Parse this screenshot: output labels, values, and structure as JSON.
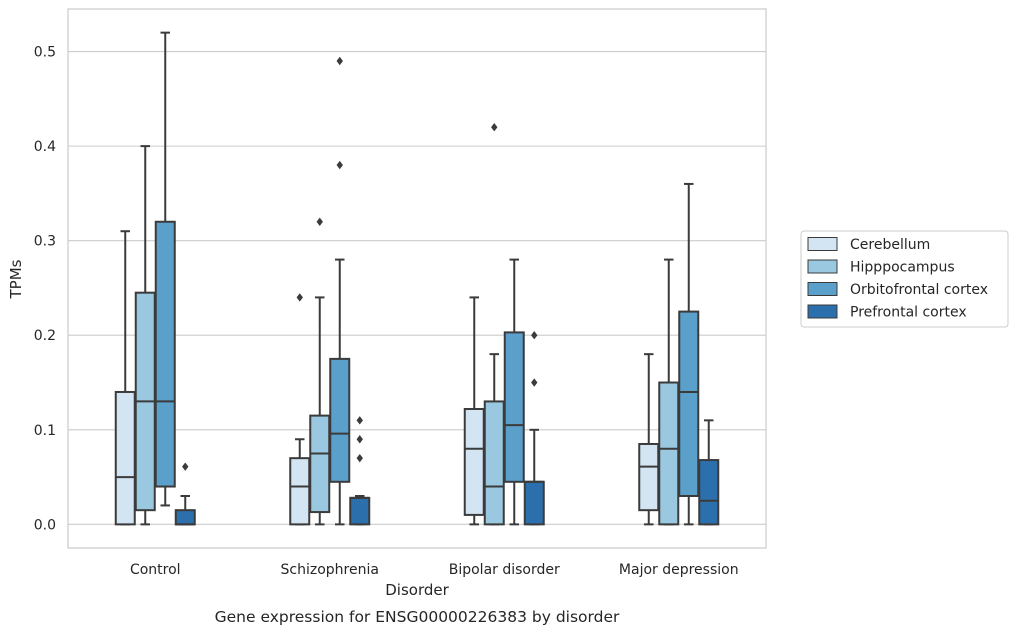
{
  "chart_data": {
    "type": "box",
    "caption": "Gene expression for ENSG00000226383 by disorder",
    "xlabel": "Disorder",
    "ylabel": "TPMs",
    "ylim": [
      -0.025,
      0.545
    ],
    "yticks": [
      "0.0",
      "0.1",
      "0.2",
      "0.3",
      "0.4",
      "0.5"
    ],
    "grid": "horizontal",
    "legend_position": "right",
    "categories": [
      "Control",
      "Schizophrenia",
      "Bipolar disorder",
      "Major depression"
    ],
    "series": [
      {
        "name": "Cerebellum",
        "color": "#d3e4f3",
        "boxes": [
          {
            "whisker_low": 0.0,
            "q1": 0.0,
            "median": 0.05,
            "q3": 0.14,
            "whisker_high": 0.31,
            "outliers": []
          },
          {
            "whisker_low": 0.0,
            "q1": 0.0,
            "median": 0.04,
            "q3": 0.07,
            "whisker_high": 0.09,
            "outliers": [
              0.24
            ]
          },
          {
            "whisker_low": 0.0,
            "q1": 0.01,
            "median": 0.08,
            "q3": 0.122,
            "whisker_high": 0.24,
            "outliers": []
          },
          {
            "whisker_low": 0.0,
            "q1": 0.015,
            "median": 0.061,
            "q3": 0.085,
            "whisker_high": 0.18,
            "outliers": []
          }
        ]
      },
      {
        "name": "Hipppocampus",
        "color": "#9ac8e0",
        "boxes": [
          {
            "whisker_low": 0.0,
            "q1": 0.015,
            "median": 0.13,
            "q3": 0.245,
            "whisker_high": 0.4,
            "outliers": []
          },
          {
            "whisker_low": 0.0,
            "q1": 0.013,
            "median": 0.075,
            "q3": 0.115,
            "whisker_high": 0.24,
            "outliers": [
              0.32
            ]
          },
          {
            "whisker_low": 0.0,
            "q1": 0.0,
            "median": 0.04,
            "q3": 0.13,
            "whisker_high": 0.18,
            "outliers": [
              0.42
            ]
          },
          {
            "whisker_low": 0.0,
            "q1": 0.0,
            "median": 0.08,
            "q3": 0.15,
            "whisker_high": 0.28,
            "outliers": []
          }
        ]
      },
      {
        "name": "Orbitofrontal cortex",
        "color": "#5b9fcb",
        "boxes": [
          {
            "whisker_low": 0.02,
            "q1": 0.04,
            "median": 0.13,
            "q3": 0.32,
            "whisker_high": 0.52,
            "outliers": []
          },
          {
            "whisker_low": 0.0,
            "q1": 0.045,
            "median": 0.096,
            "q3": 0.175,
            "whisker_high": 0.28,
            "outliers": [
              0.38,
              0.49
            ]
          },
          {
            "whisker_low": 0.0,
            "q1": 0.045,
            "median": 0.105,
            "q3": 0.203,
            "whisker_high": 0.28,
            "outliers": []
          },
          {
            "whisker_low": 0.0,
            "q1": 0.03,
            "median": 0.14,
            "q3": 0.225,
            "whisker_high": 0.36,
            "outliers": []
          }
        ]
      },
      {
        "name": "Prefrontal cortex",
        "color": "#2c6fad",
        "boxes": [
          {
            "whisker_low": 0.0,
            "q1": 0.0,
            "median": 0.0,
            "q3": 0.015,
            "whisker_high": 0.03,
            "outliers": [
              0.061
            ]
          },
          {
            "whisker_low": 0.0,
            "q1": 0.0,
            "median": 0.028,
            "q3": 0.028,
            "whisker_high": 0.03,
            "outliers": [
              0.07,
              0.09,
              0.11
            ]
          },
          {
            "whisker_low": 0.0,
            "q1": 0.0,
            "median": 0.045,
            "q3": 0.045,
            "whisker_high": 0.1,
            "outliers": [
              0.15,
              0.2
            ]
          },
          {
            "whisker_low": 0.0,
            "q1": 0.0,
            "median": 0.025,
            "q3": 0.068,
            "whisker_high": 0.11,
            "outliers": []
          }
        ]
      }
    ]
  }
}
